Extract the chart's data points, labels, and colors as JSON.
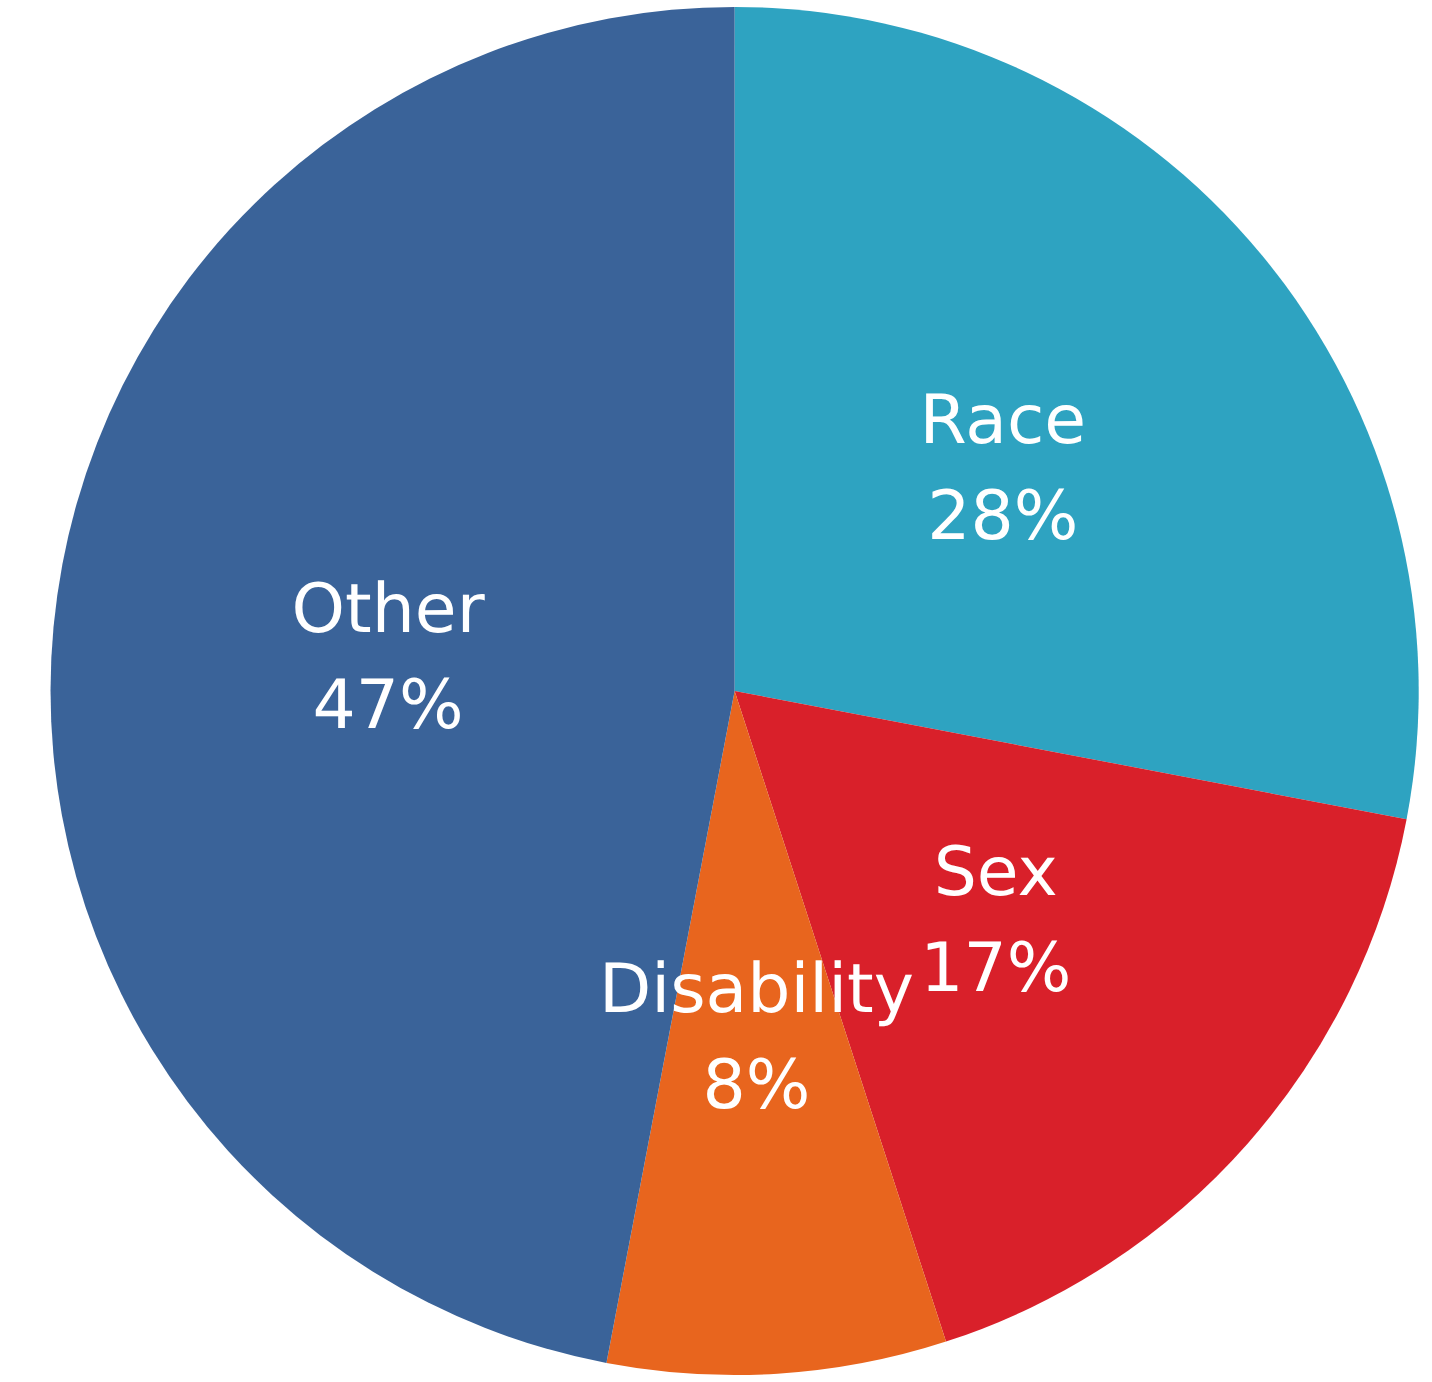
{
  "chart_data": {
    "type": "pie",
    "categories": [
      "Race",
      "Sex",
      "Disability",
      "Other"
    ],
    "values": [
      28,
      17,
      8,
      47
    ],
    "value_labels": [
      "28%",
      "17%",
      "8%",
      "47%"
    ],
    "colors": [
      "#2ea3c1",
      "#d9202a",
      "#e8651e",
      "#3a6399"
    ],
    "legend": false
  }
}
